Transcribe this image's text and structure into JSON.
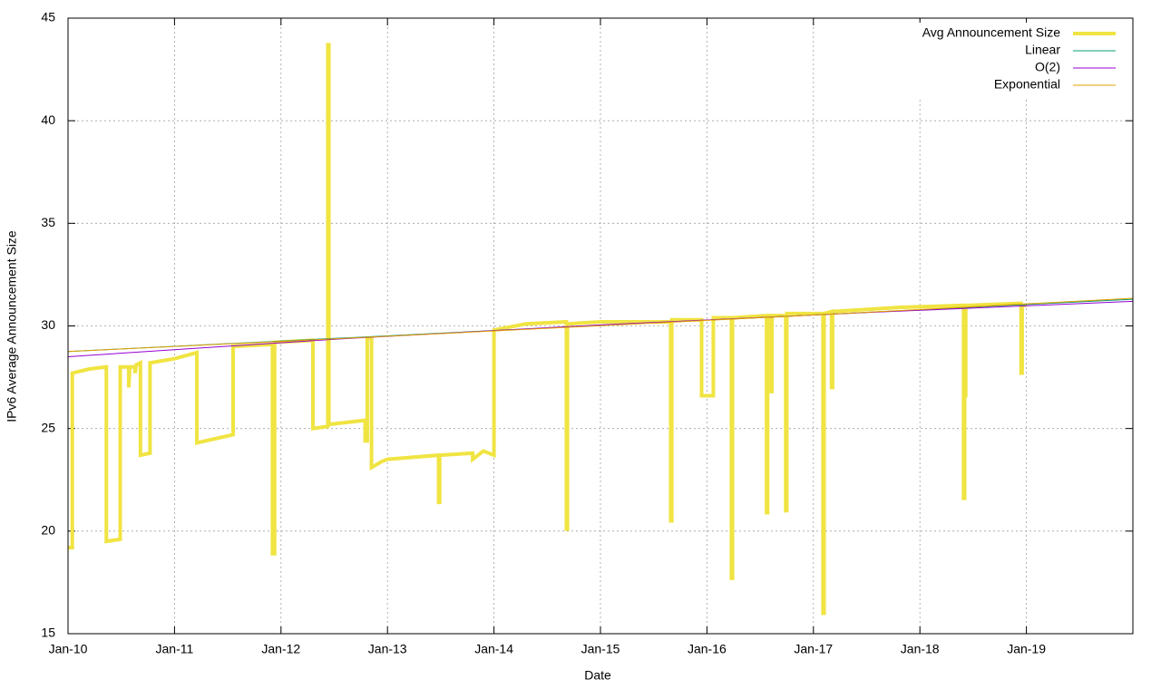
{
  "chart_data": {
    "type": "line",
    "x_label": "Date",
    "y_label": "IPv6 Average Announcement Size",
    "xlim": [
      2010,
      2020
    ],
    "ylim": [
      15,
      45
    ],
    "xticks": [
      {
        "value": 2010,
        "label": "Jan-10"
      },
      {
        "value": 2011,
        "label": "Jan-11"
      },
      {
        "value": 2012,
        "label": "Jan-12"
      },
      {
        "value": 2013,
        "label": "Jan-13"
      },
      {
        "value": 2014,
        "label": "Jan-14"
      },
      {
        "value": 2015,
        "label": "Jan-15"
      },
      {
        "value": 2016,
        "label": "Jan-16"
      },
      {
        "value": 2017,
        "label": "Jan-17"
      },
      {
        "value": 2018,
        "label": "Jan-18"
      },
      {
        "value": 2019,
        "label": "Jan-19"
      }
    ],
    "yticks": [
      15,
      20,
      25,
      30,
      35,
      40,
      45
    ],
    "grid": true,
    "legend": "top-right",
    "series": [
      {
        "name": "Avg Announcement Size",
        "color": "#f0e442",
        "width": 4,
        "x": [
          2010.0,
          2010.04,
          2010.04,
          2010.2,
          2010.36,
          2010.36,
          2010.49,
          2010.49,
          2010.57,
          2010.57,
          2010.58,
          2010.63,
          2010.63,
          2010.64,
          2010.68,
          2010.68,
          2010.77,
          2010.77,
          2011.0,
          2011.21,
          2011.21,
          2011.55,
          2011.55,
          2011.92,
          2011.92,
          2011.94,
          2011.94,
          2012.3,
          2012.3,
          2012.44,
          2012.44,
          2012.45,
          2012.45,
          2012.79,
          2012.79,
          2012.81,
          2012.81,
          2012.85,
          2012.85,
          2012.95,
          2013.0,
          2013.48,
          2013.48,
          2013.49,
          2013.49,
          2013.8,
          2013.8,
          2013.9,
          2014.0,
          2014.0,
          2014.3,
          2014.68,
          2014.68,
          2014.69,
          2014.69,
          2015.0,
          2015.66,
          2015.66,
          2015.67,
          2015.67,
          2015.95,
          2015.95,
          2016.06,
          2016.06,
          2016.23,
          2016.23,
          2016.24,
          2016.24,
          2016.56,
          2016.56,
          2016.57,
          2016.57,
          2016.6,
          2016.6,
          2016.61,
          2016.61,
          2016.74,
          2016.74,
          2016.75,
          2016.75,
          2017.09,
          2017.09,
          2017.1,
          2017.1,
          2017.17,
          2017.17,
          2017.18,
          2017.18,
          2017.8,
          2018.41,
          2018.41,
          2018.42,
          2018.42,
          2018.43,
          2018.43,
          2018.95,
          2018.95,
          2018.96,
          2018.96,
          2019.0
        ],
        "values": [
          19.2,
          19.2,
          27.7,
          27.9,
          28.0,
          19.5,
          19.6,
          28.0,
          28.0,
          27.0,
          28.0,
          28.0,
          27.7,
          28.1,
          28.2,
          23.7,
          23.8,
          28.2,
          28.4,
          28.7,
          24.3,
          24.7,
          29.0,
          29.1,
          18.9,
          18.9,
          29.2,
          29.3,
          25.0,
          25.1,
          43.7,
          43.7,
          25.2,
          25.4,
          24.4,
          24.4,
          29.4,
          29.4,
          23.1,
          23.4,
          23.5,
          23.7,
          21.4,
          21.4,
          23.7,
          23.8,
          23.5,
          23.9,
          23.7,
          29.8,
          30.1,
          30.2,
          20.1,
          20.1,
          30.1,
          30.2,
          30.2,
          20.5,
          20.5,
          30.3,
          30.3,
          26.6,
          26.6,
          30.4,
          30.4,
          17.7,
          17.7,
          30.4,
          30.5,
          20.9,
          20.9,
          30.5,
          30.5,
          26.8,
          26.8,
          30.5,
          30.5,
          21.0,
          21.0,
          30.6,
          30.6,
          16.0,
          16.0,
          30.6,
          30.7,
          27.0,
          27.0,
          30.7,
          30.9,
          31.0,
          21.6,
          21.6,
          26.6,
          26.6,
          31.0,
          31.1,
          27.7,
          27.7,
          31.0,
          31.0
        ]
      },
      {
        "name": "Linear",
        "color": "#009e73",
        "width": 1,
        "x": [
          2010,
          2012.5,
          2015,
          2017.5,
          2020
        ],
        "values": [
          28.75,
          29.39,
          30.03,
          30.66,
          31.3
        ]
      },
      {
        "name": "O(2)",
        "color": "#9400d3",
        "width": 1,
        "x": [
          2010,
          2012.5,
          2015,
          2017.5,
          2020
        ],
        "values": [
          28.5,
          29.35,
          30.05,
          30.65,
          31.2
        ]
      },
      {
        "name": "Exponential",
        "color": "#e69f00",
        "width": 1,
        "x": [
          2010,
          2012.5,
          2015,
          2017.5,
          2020
        ],
        "values": [
          28.75,
          29.37,
          30.01,
          30.66,
          31.35
        ]
      }
    ]
  }
}
